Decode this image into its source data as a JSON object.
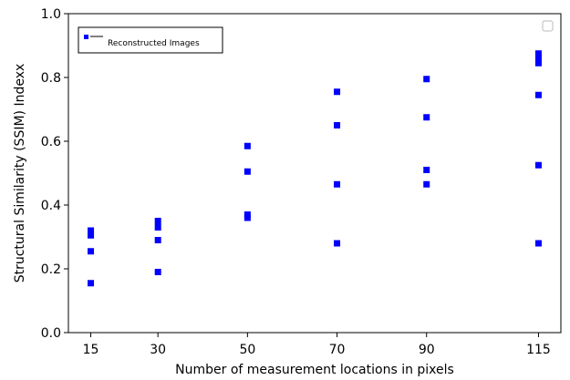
{
  "chart_data": {
    "type": "scatter",
    "title": "",
    "xlabel": "Number of measurement locations in pixels",
    "ylabel": "Structural Similarity (SSIM) Indexx",
    "xlim": [
      10,
      120
    ],
    "ylim": [
      0.0,
      1.0
    ],
    "x_ticks": [
      15,
      30,
      50,
      70,
      90,
      115
    ],
    "y_ticks": [
      0.0,
      0.2,
      0.4,
      0.6,
      0.8,
      1.0
    ],
    "grid": false,
    "legend": {
      "placement": "top-left"
    },
    "series": [
      {
        "name": "Reconstructed Images",
        "color": "#0000ff",
        "marker": "square",
        "points": [
          [
            15,
            0.32
          ],
          [
            15,
            0.305
          ],
          [
            15,
            0.255
          ],
          [
            15,
            0.155
          ],
          [
            30,
            0.35
          ],
          [
            30,
            0.33
          ],
          [
            30,
            0.29
          ],
          [
            30,
            0.19
          ],
          [
            50,
            0.585
          ],
          [
            50,
            0.505
          ],
          [
            50,
            0.37
          ],
          [
            50,
            0.36
          ],
          [
            70,
            0.755
          ],
          [
            70,
            0.65
          ],
          [
            70,
            0.465
          ],
          [
            70,
            0.28
          ],
          [
            90,
            0.795
          ],
          [
            90,
            0.675
          ],
          [
            90,
            0.51
          ],
          [
            90,
            0.465
          ],
          [
            115,
            0.875
          ],
          [
            115,
            0.86
          ],
          [
            115,
            0.845
          ],
          [
            115,
            0.745
          ],
          [
            115,
            0.525
          ],
          [
            115,
            0.28
          ]
        ]
      }
    ]
  }
}
